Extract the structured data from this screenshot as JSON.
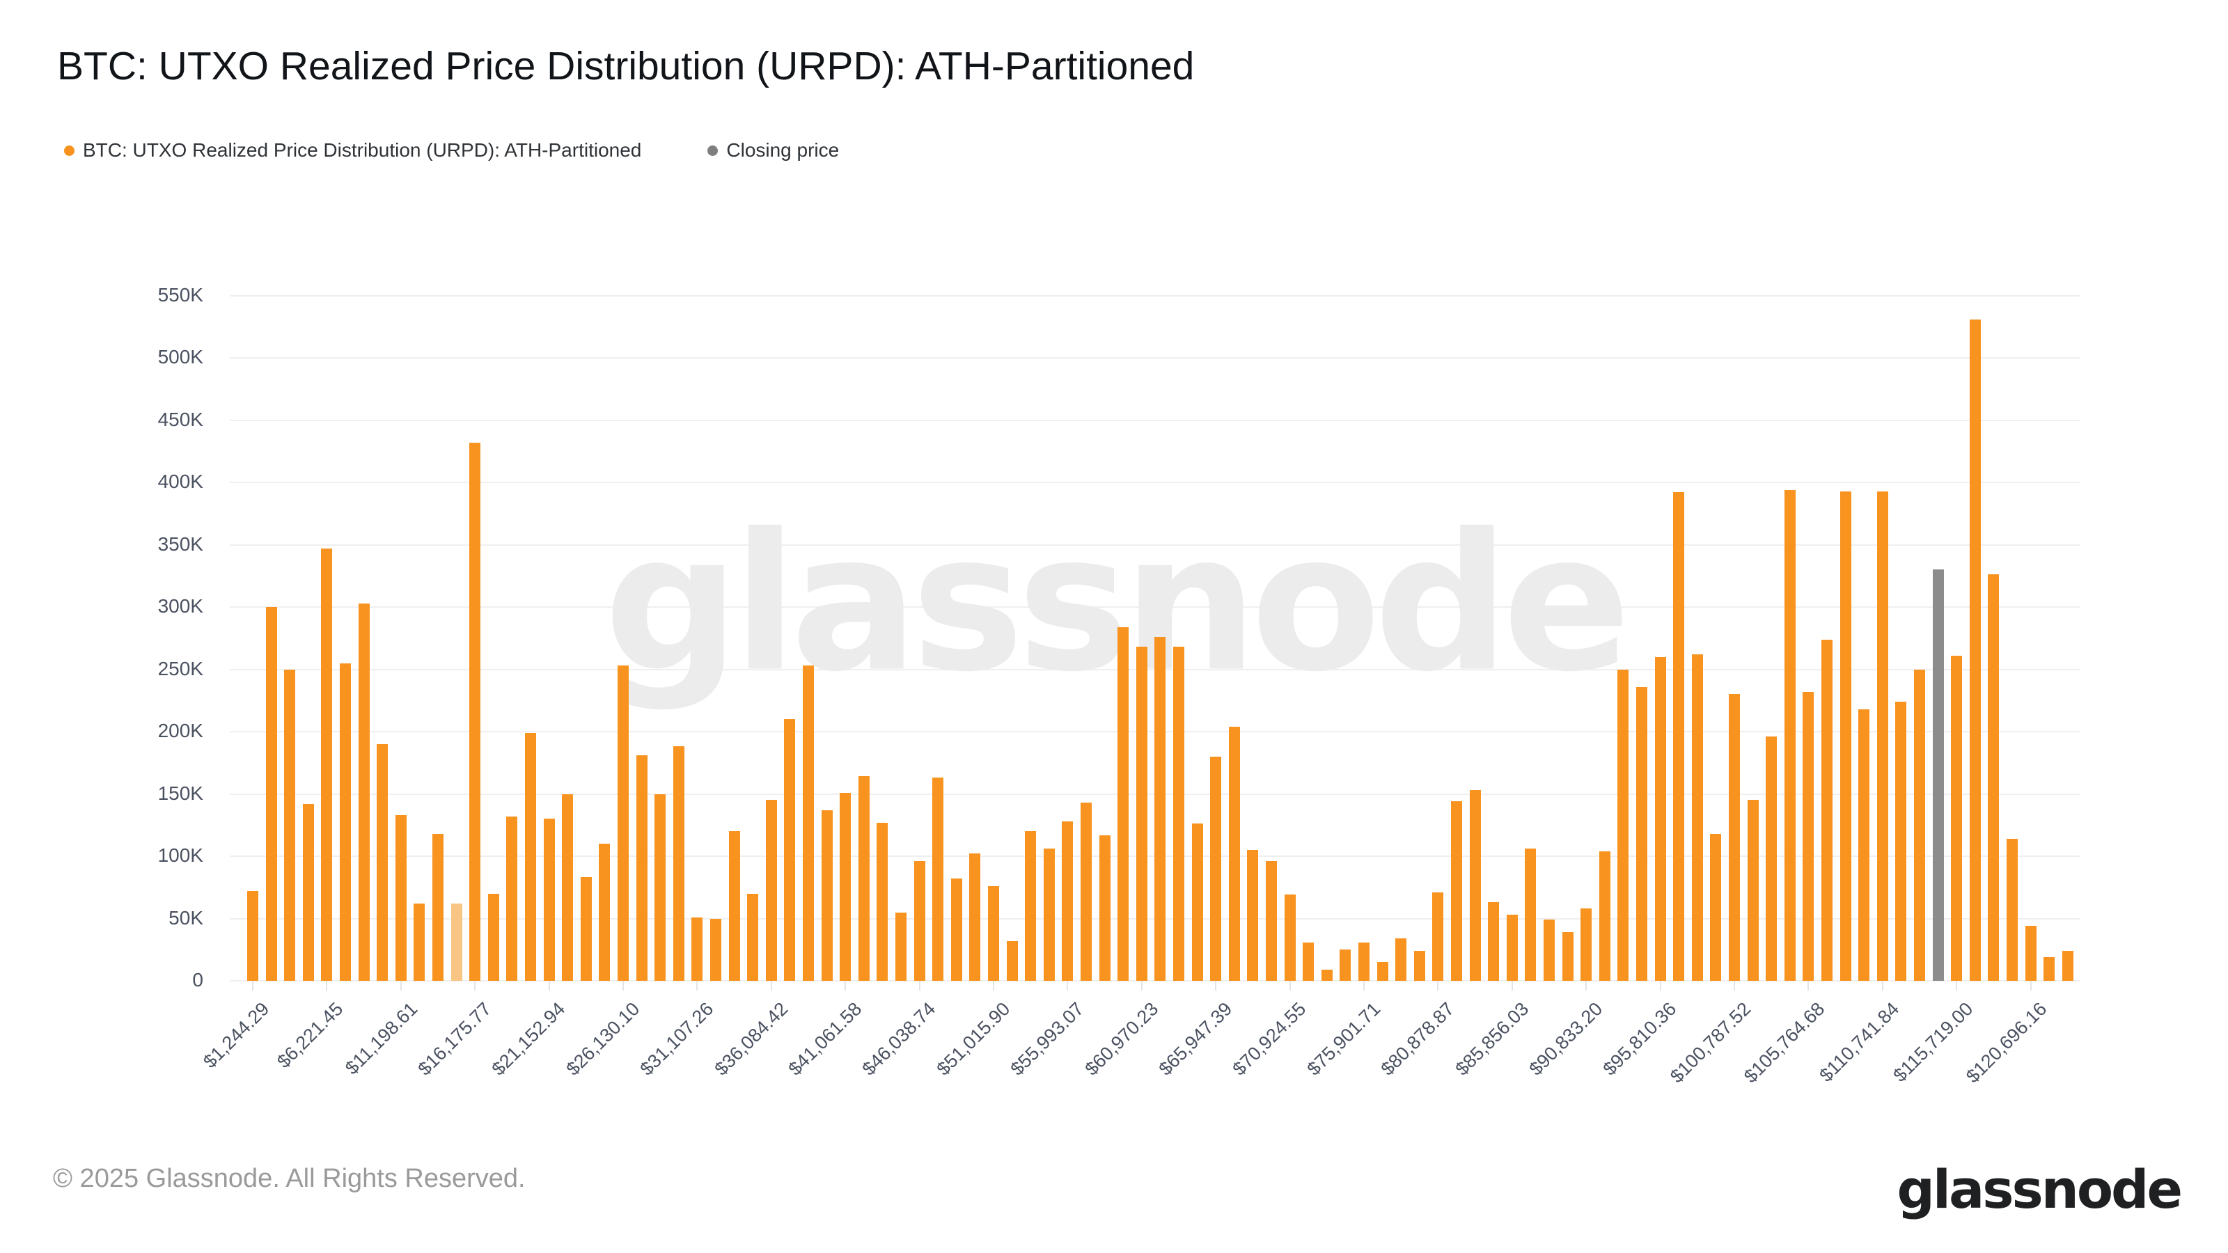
{
  "header": {
    "title": "BTC: UTXO Realized Price Distribution (URPD): ATH-Partitioned"
  },
  "legend": [
    {
      "label": "BTC: UTXO Realized Price Distribution (URPD): ATH-Partitioned",
      "color": "#f7931e"
    },
    {
      "label": "Closing price",
      "color": "#7f7f7f"
    }
  ],
  "watermark": "glassnode",
  "footer": {
    "copyright": "© 2025 Glassnode. All Rights Reserved.",
    "logo": "glassnode"
  },
  "chart_data": {
    "type": "bar",
    "title": "BTC: UTXO Realized Price Distribution (URPD): ATH-Partitioned",
    "xlabel": "",
    "ylabel": "",
    "y_unit": "K",
    "ylim_k": [
      0,
      550
    ],
    "grid": "horizontal",
    "legend_position": "top-left",
    "y_tick_labels": [
      "0",
      "50K",
      "100K",
      "150K",
      "200K",
      "250K",
      "300K",
      "350K",
      "400K",
      "450K",
      "500K",
      "550K"
    ],
    "bin_width_usd": 1244.29,
    "first_bin_usd": 1244.29,
    "x_tick_every_n_bars": 4,
    "x_tick_labels": [
      "$1,244.29",
      "$6,221.45",
      "$11,198.61",
      "$16,175.77",
      "$21,152.94",
      "$26,130.10",
      "$31,107.26",
      "$36,084.42",
      "$41,061.58",
      "$46,038.74",
      "$51,015.90",
      "$55,993.07",
      "$60,970.23",
      "$65,947.39",
      "$70,924.55",
      "$75,901.71",
      "$80,878.87",
      "$85,856.03",
      "$90,833.20",
      "$95,810.36",
      "$100,787.52",
      "$105,764.68",
      "$110,741.84",
      "$115,719.00",
      "$120,696.16"
    ],
    "values_k": [
      72,
      300,
      250,
      142,
      347,
      255,
      303,
      190,
      133,
      62,
      118,
      62,
      432,
      70,
      132,
      199,
      130,
      150,
      83,
      110,
      253,
      181,
      150,
      188,
      51,
      50,
      120,
      70,
      145,
      210,
      253,
      137,
      151,
      164,
      127,
      55,
      96,
      163,
      82,
      102,
      76,
      32,
      120,
      106,
      128,
      143,
      117,
      284,
      268,
      276,
      268,
      126,
      180,
      204,
      105,
      96,
      69,
      31,
      9,
      25,
      31,
      15,
      34,
      24,
      71,
      144,
      153,
      63,
      53,
      106,
      49,
      39,
      58,
      104,
      250,
      236,
      260,
      392,
      262,
      118,
      230,
      145,
      196,
      394,
      232,
      274,
      393,
      218,
      393,
      224,
      250,
      330,
      261,
      531,
      326,
      114,
      44,
      19,
      24
    ],
    "closing_price_bar": {
      "bar_index": 91,
      "value_k": 330
    },
    "muted_bar_index": 11,
    "colors": {
      "bars": "#f7931e",
      "muted_bar": "#f9c584",
      "closing_bar": "#8c8c8c",
      "gridline": "#efefef",
      "axis_text": "#4a5160"
    }
  }
}
